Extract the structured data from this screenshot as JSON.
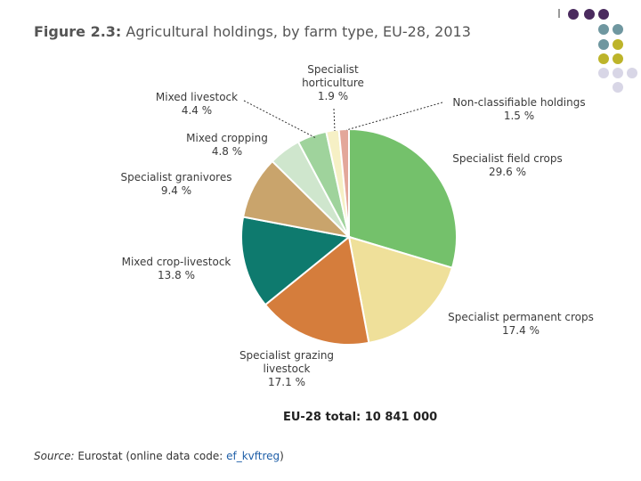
{
  "title": {
    "figure_label": "Figure 2.3:",
    "text": "Agricultural holdings, by farm type, EU-28, 2013"
  },
  "chart_data": {
    "type": "pie",
    "title": "Agricultural holdings, by farm type, EU-28, 2013",
    "slices": [
      {
        "name": "Specialist field crops",
        "lines": [
          "Specialist field crops"
        ],
        "value": 29.6,
        "label": "29.6 %",
        "color": "#74c16b"
      },
      {
        "name": "Specialist permanent crops",
        "lines": [
          "Specialist permanent crops"
        ],
        "value": 17.4,
        "label": "17.4 %",
        "color": "#efe09a"
      },
      {
        "name": "Specialist grazing livestock",
        "lines": [
          "Specialist grazing",
          "livestock"
        ],
        "value": 17.1,
        "label": "17.1 %",
        "color": "#d57d3c"
      },
      {
        "name": "Mixed crop-livestock",
        "lines": [
          "Mixed crop-livestock"
        ],
        "value": 13.8,
        "label": "13.8 %",
        "color": "#0e7a6e"
      },
      {
        "name": "Specialist granivores",
        "lines": [
          "Specialist granivores"
        ],
        "value": 9.4,
        "label": "9.4 %",
        "color": "#c9a46c"
      },
      {
        "name": "Mixed cropping",
        "lines": [
          "Mixed cropping"
        ],
        "value": 4.8,
        "label": "4.8 %",
        "color": "#cfe6cd"
      },
      {
        "name": "Mixed livestock",
        "lines": [
          "Mixed livestock"
        ],
        "value": 4.4,
        "label": "4.4 %",
        "color": "#9fd39c"
      },
      {
        "name": "Specialist horticulture",
        "lines": [
          "Specialist",
          "horticulture"
        ],
        "value": 1.9,
        "label": "1.9 %",
        "color": "#f6f0c5"
      },
      {
        "name": "Non-classifiable holdings",
        "lines": [
          "Non-classifiable holdings"
        ],
        "value": 1.5,
        "label": "1.5 %",
        "color": "#e3a79a"
      }
    ],
    "start_angle_deg": 0,
    "direction": "clockwise"
  },
  "total": "EU-28 total: 10 841 000",
  "source": {
    "label": "Source:",
    "text": " Eurostat (online data code: ",
    "code": "ef_kvftreg",
    "close": ")"
  },
  "decoration": {
    "dot_colors": [
      "#4a2a5e",
      "#6f97a0",
      "#bdb42a",
      "#d8d6e6"
    ]
  }
}
